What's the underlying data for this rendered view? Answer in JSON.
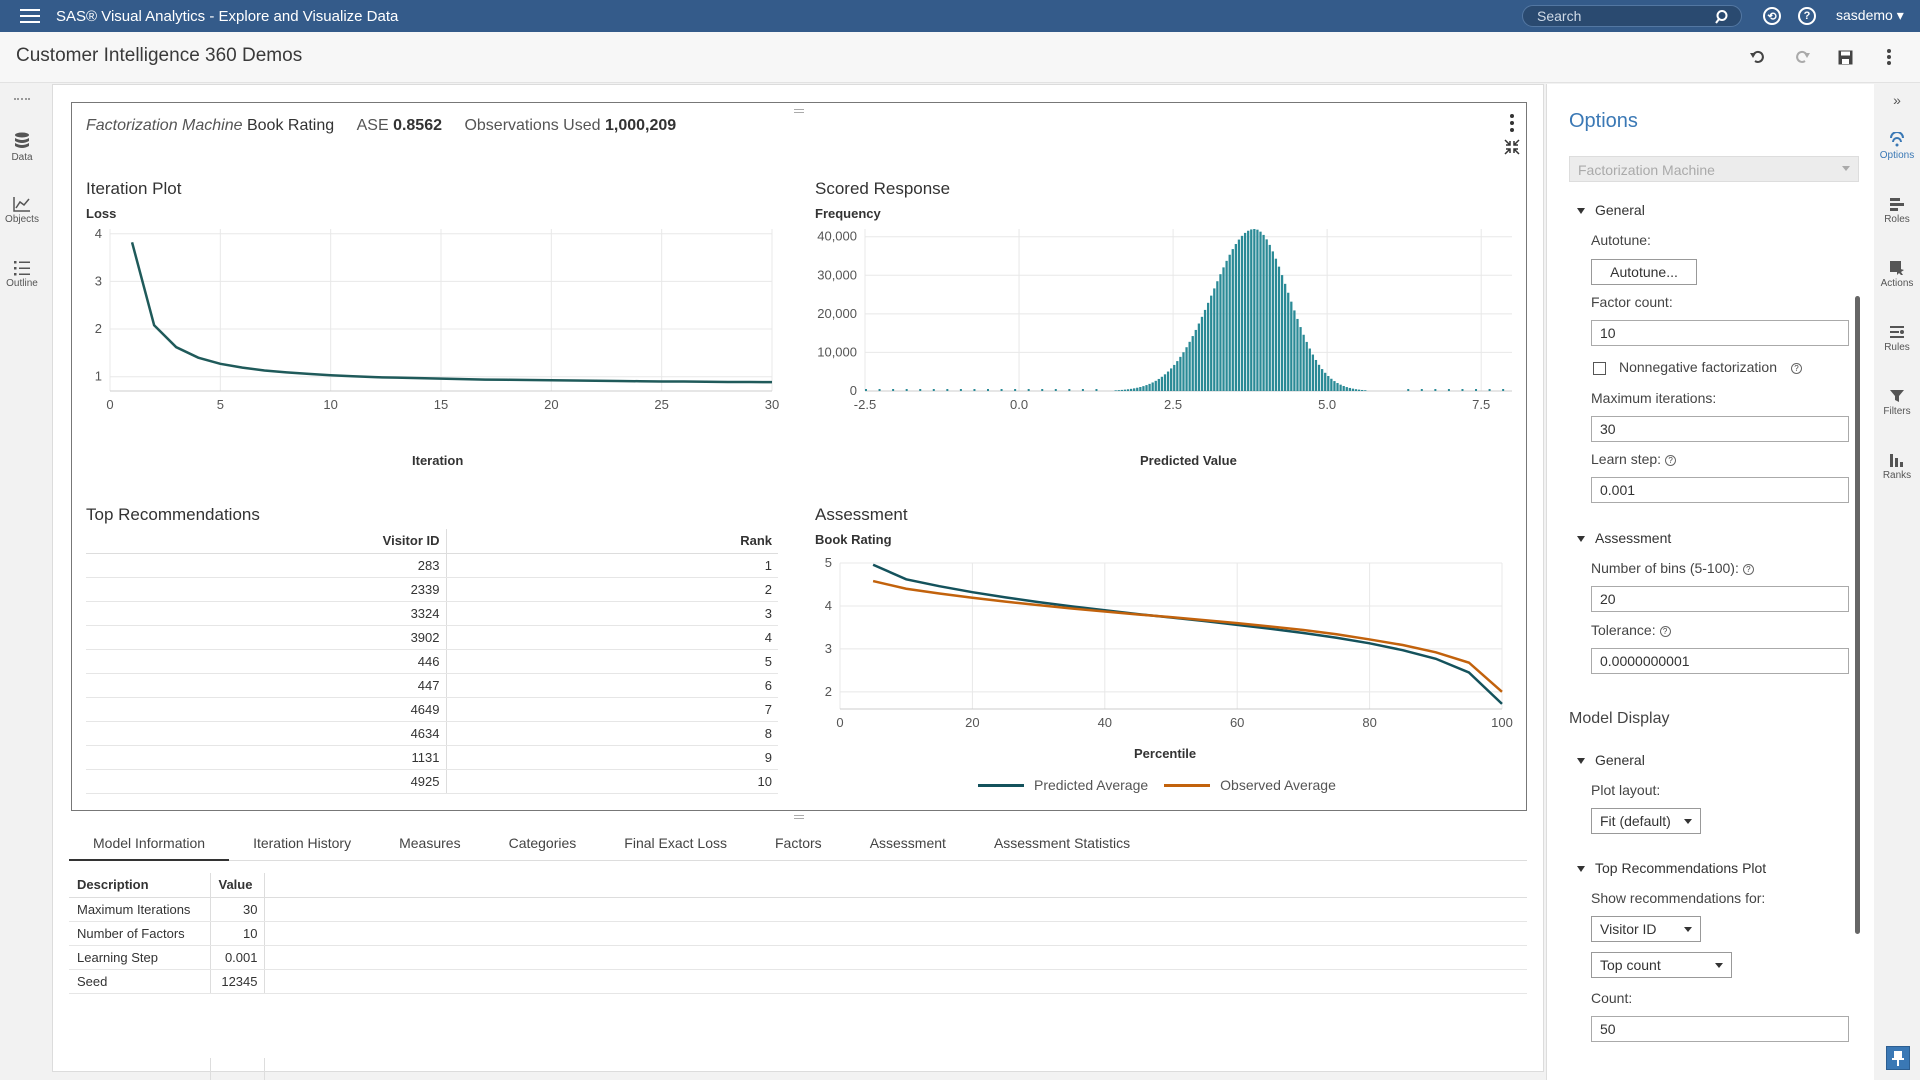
{
  "app": {
    "title": "SAS® Visual Analytics - Explore and Visualize Data",
    "user": "sasdemo ▾",
    "search_placeholder": "Search"
  },
  "page": {
    "title": "Customer Intelligence 360 Demos"
  },
  "left_rail": [
    {
      "label": "Data",
      "icon": "database-icon"
    },
    {
      "label": "Objects",
      "icon": "chart-icon"
    },
    {
      "label": "Outline",
      "icon": "list-icon"
    }
  ],
  "report": {
    "model_type": "Factorization Machine",
    "target": "Book Rating",
    "ase_label": "ASE",
    "ase_value": "0.8562",
    "obs_label": "Observations Used",
    "obs_value": "1,000,209"
  },
  "iteration_plot": {
    "title": "Iteration Plot",
    "ylabel": "Loss",
    "xlabel": "Iteration"
  },
  "scored_response": {
    "title": "Scored Response",
    "ylabel": "Frequency",
    "xlabel": "Predicted Value"
  },
  "top_recs": {
    "title": "Top Recommendations",
    "headers": {
      "visitor": "Visitor ID",
      "rank": "Rank"
    },
    "rows": [
      {
        "visitor": "283",
        "rank": "1"
      },
      {
        "visitor": "2339",
        "rank": "2"
      },
      {
        "visitor": "3324",
        "rank": "3"
      },
      {
        "visitor": "3902",
        "rank": "4"
      },
      {
        "visitor": "446",
        "rank": "5"
      },
      {
        "visitor": "447",
        "rank": "6"
      },
      {
        "visitor": "4649",
        "rank": "7"
      },
      {
        "visitor": "4634",
        "rank": "8"
      },
      {
        "visitor": "1131",
        "rank": "9"
      },
      {
        "visitor": "4925",
        "rank": "10"
      }
    ]
  },
  "assessment": {
    "title": "Assessment",
    "ylabel": "Book Rating",
    "xlabel": "Percentile",
    "legend": [
      "Predicted Average",
      "Observed Average"
    ]
  },
  "chart_data": [
    {
      "type": "line",
      "title": "Iteration Plot",
      "xlabel": "Iteration",
      "ylabel": "Loss",
      "xlim": [
        0,
        30
      ],
      "ylim": [
        0.7,
        4.1
      ],
      "xticks": [
        "0",
        "5",
        "10",
        "15",
        "20",
        "25",
        "30"
      ],
      "yticks": [
        "1",
        "2",
        "3",
        "4"
      ],
      "x": [
        1,
        2,
        3,
        4,
        5,
        6,
        7,
        8,
        9,
        10,
        11,
        12,
        13,
        14,
        15,
        16,
        17,
        18,
        19,
        20,
        21,
        22,
        23,
        24,
        25,
        26,
        27,
        28,
        29,
        30
      ],
      "series": [
        {
          "color": "#1f5a5a",
          "values": [
            3.82,
            2.08,
            1.62,
            1.4,
            1.27,
            1.19,
            1.13,
            1.09,
            1.06,
            1.03,
            1.01,
            0.99,
            0.98,
            0.97,
            0.96,
            0.95,
            0.94,
            0.935,
            0.93,
            0.925,
            0.92,
            0.915,
            0.91,
            0.905,
            0.9,
            0.9,
            0.895,
            0.89,
            0.89,
            0.885
          ]
        }
      ]
    },
    {
      "type": "bar",
      "title": "Scored Response",
      "xlabel": "Predicted Value",
      "ylabel": "Frequency",
      "xlim": [
        -2.5,
        8.0
      ],
      "ylim": [
        0,
        42000
      ],
      "xticks": [
        "-2.5",
        "0.0",
        "2.5",
        "5.0",
        "7.5"
      ],
      "yticks": [
        "0",
        "10,000",
        "20,000",
        "30,000",
        "40,000"
      ],
      "center": 3.8,
      "peak": 42000,
      "spread_left": 0.68,
      "spread_right": 0.55,
      "bin_width": 0.05,
      "bar_color": "#2a8a96"
    },
    {
      "type": "line",
      "title": "Assessment",
      "xlabel": "Percentile",
      "ylabel": "Book Rating",
      "xlim": [
        0,
        100
      ],
      "ylim": [
        1.6,
        5.0
      ],
      "xticks": [
        "0",
        "20",
        "40",
        "60",
        "80",
        "100"
      ],
      "yticks": [
        "2",
        "3",
        "4",
        "5"
      ],
      "x": [
        5,
        10,
        15,
        20,
        25,
        30,
        35,
        40,
        45,
        50,
        55,
        60,
        65,
        70,
        75,
        80,
        85,
        90,
        95,
        100
      ],
      "series": [
        {
          "name": "Predicted Average",
          "color": "#14525c",
          "values": [
            4.96,
            4.62,
            4.46,
            4.32,
            4.2,
            4.09,
            3.99,
            3.9,
            3.81,
            3.73,
            3.65,
            3.56,
            3.47,
            3.37,
            3.26,
            3.13,
            2.97,
            2.77,
            2.45,
            1.72
          ]
        },
        {
          "name": "Observed Average",
          "color": "#c2620c",
          "values": [
            4.58,
            4.4,
            4.29,
            4.19,
            4.1,
            4.02,
            3.94,
            3.87,
            3.8,
            3.74,
            3.67,
            3.6,
            3.52,
            3.44,
            3.34,
            3.22,
            3.09,
            2.92,
            2.68,
            2.0
          ]
        }
      ]
    }
  ],
  "tabs": [
    "Model Information",
    "Iteration History",
    "Measures",
    "Categories",
    "Final Exact Loss",
    "Factors",
    "Assessment",
    "Assessment Statistics"
  ],
  "model_info": {
    "headers": {
      "description": "Description",
      "value": "Value"
    },
    "rows": [
      {
        "description": "Maximum Iterations",
        "value": "30"
      },
      {
        "description": "Number of Factors",
        "value": "10"
      },
      {
        "description": "Learning Step",
        "value": "0.001"
      },
      {
        "description": "Seed",
        "value": "12345"
      }
    ]
  },
  "options": {
    "title": "Options",
    "object_select": "Factorization Machine",
    "general_label": "General",
    "autotune_label": "Autotune:",
    "autotune_button": "Autotune...",
    "factor_count_label": "Factor count:",
    "factor_count": "10",
    "nonneg_label": "Nonnegative factorization",
    "max_iter_label": "Maximum iterations:",
    "max_iter": "30",
    "learn_step_label": "Learn step:",
    "learn_step": "0.001",
    "assessment_label": "Assessment",
    "bins_label": "Number of bins (5-100):",
    "bins": "20",
    "tolerance_label": "Tolerance:",
    "tolerance": "0.0000000001",
    "model_display_label": "Model Display",
    "general2_label": "General",
    "plot_layout_label": "Plot layout:",
    "plot_layout": "Fit (default)",
    "top_recs_plot_label": "Top Recommendations Plot",
    "show_recs_label": "Show recommendations for:",
    "show_recs": "Visitor ID",
    "top_count_select": "Top count",
    "count_label": "Count:",
    "count": "50"
  },
  "right_rail": [
    {
      "label": "Options"
    },
    {
      "label": "Roles"
    },
    {
      "label": "Actions"
    },
    {
      "label": "Rules"
    },
    {
      "label": "Filters"
    },
    {
      "label": "Ranks"
    }
  ]
}
